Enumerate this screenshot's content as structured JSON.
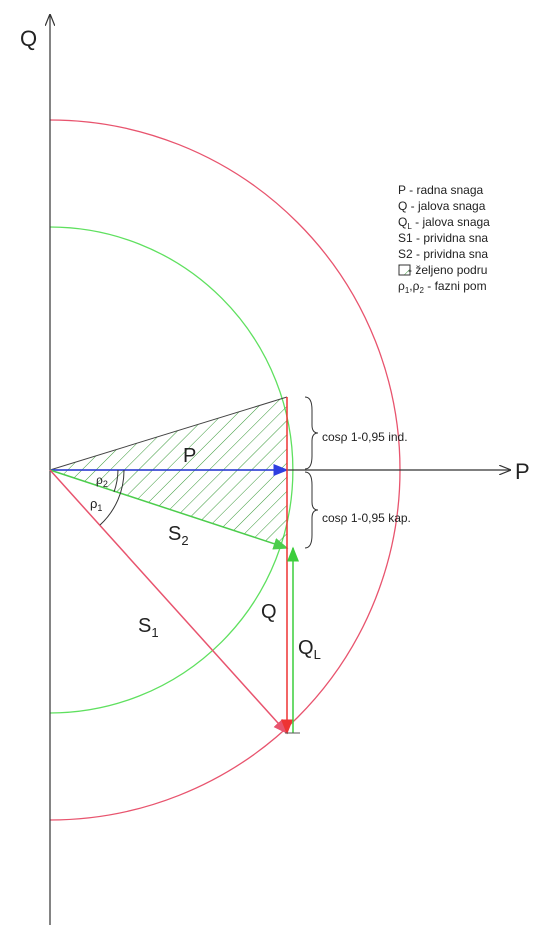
{
  "axes": {
    "q": "Q",
    "p": "P"
  },
  "legend": [
    {
      "main": "P",
      "sub": "",
      "rest": " - radna snaga"
    },
    {
      "main": "Q",
      "sub": "",
      "rest": " - jalova snaga"
    },
    {
      "main": "Q",
      "sub": "L",
      "rest": " - jalova snaga"
    },
    {
      "main": "S1",
      "sub": "",
      "rest": " - prividna sna"
    },
    {
      "main": "S2",
      "sub": "",
      "rest": " - prividna sna"
    },
    {
      "main": "",
      "sub": "",
      "rest": " - željeno podru"
    },
    {
      "main": "ρ",
      "sub": "1",
      "rest": ",ρ",
      "sub2": "2",
      "rest2": " - fazni pom"
    }
  ],
  "labels": {
    "p": "P",
    "s2": {
      "main": "S",
      "sub": "2"
    },
    "s1": {
      "main": "S",
      "sub": "1"
    },
    "q": "Q",
    "ql": {
      "main": "Q",
      "sub": "L"
    },
    "rho1": {
      "main": "ρ",
      "sub": "1"
    },
    "rho2": {
      "main": "ρ",
      "sub": "2"
    },
    "ind": "cosρ 1-0,95 ind.",
    "kap": "cosρ 1-0,95 kap."
  }
}
